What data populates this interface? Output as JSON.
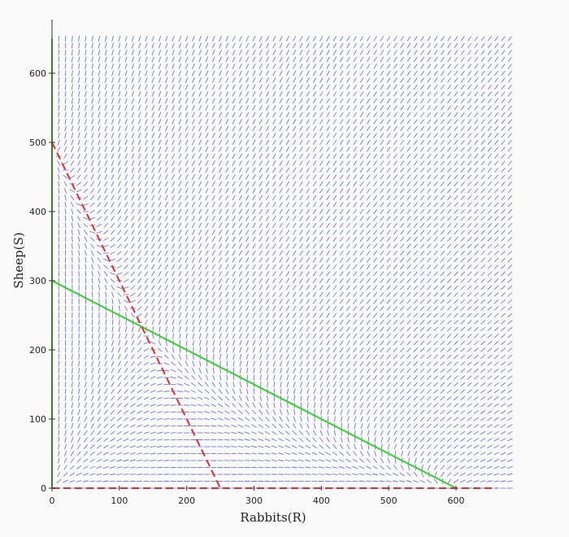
{
  "chart_data": {
    "type": "line",
    "subtype": "phase-portrait-direction-field",
    "title": "",
    "xlabel": "Rabbits(R)",
    "ylabel": "Sheep(S)",
    "xlim": [
      0,
      680
    ],
    "ylim": [
      0,
      650
    ],
    "x_ticks": [
      0,
      100,
      200,
      300,
      400,
      500,
      600
    ],
    "y_ticks": [
      0,
      100,
      200,
      300,
      400,
      500,
      600
    ],
    "grid": false,
    "direction_field_color": "#5b66e8",
    "series": [
      {
        "style": "solid",
        "color": "#39d02a",
        "x": [
          0,
          0
        ],
        "y": [
          0,
          650
        ]
      },
      {
        "style": "solid",
        "color": "#39d02a",
        "x": [
          0,
          600
        ],
        "y": [
          300,
          0
        ]
      },
      {
        "style": "dashed",
        "color": "#e0302c",
        "x": [
          0,
          250
        ],
        "y": [
          500,
          0
        ]
      },
      {
        "style": "dashed",
        "color": "#e0302c",
        "x": [
          0,
          660
        ],
        "y": [
          0,
          0
        ]
      }
    ]
  }
}
